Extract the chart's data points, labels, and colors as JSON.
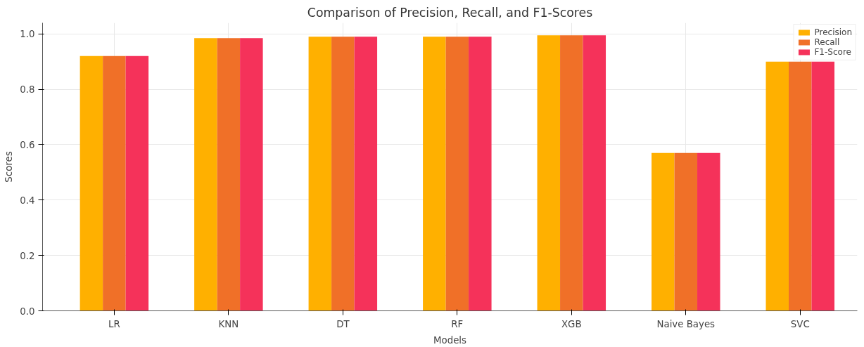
{
  "chart_data": {
    "type": "bar",
    "title": "Comparison of Precision, Recall, and F1-Scores",
    "xlabel": "Models",
    "ylabel": "Scores",
    "categories": [
      "LR",
      "KNN",
      "DT",
      "RF",
      "XGB",
      "Naive Bayes",
      "SVC"
    ],
    "series": [
      {
        "name": "Precision",
        "color": "#ffb000",
        "values": [
          0.92,
          0.985,
          0.99,
          0.99,
          0.995,
          0.57,
          0.9
        ]
      },
      {
        "name": "Recall",
        "color": "#f07028",
        "values": [
          0.92,
          0.985,
          0.99,
          0.99,
          0.995,
          0.57,
          0.9
        ]
      },
      {
        "name": "F1-Score",
        "color": "#f5325a",
        "values": [
          0.92,
          0.985,
          0.99,
          0.99,
          0.995,
          0.57,
          0.9
        ]
      }
    ],
    "ylim": [
      0,
      1.04
    ],
    "yticks": [
      {
        "value": 0,
        "label": "0.0"
      },
      0.2,
      0.4,
      0.6,
      0.8,
      {
        "value": 1,
        "label": "1.0"
      }
    ],
    "grid": true,
    "legend": "top right"
  }
}
